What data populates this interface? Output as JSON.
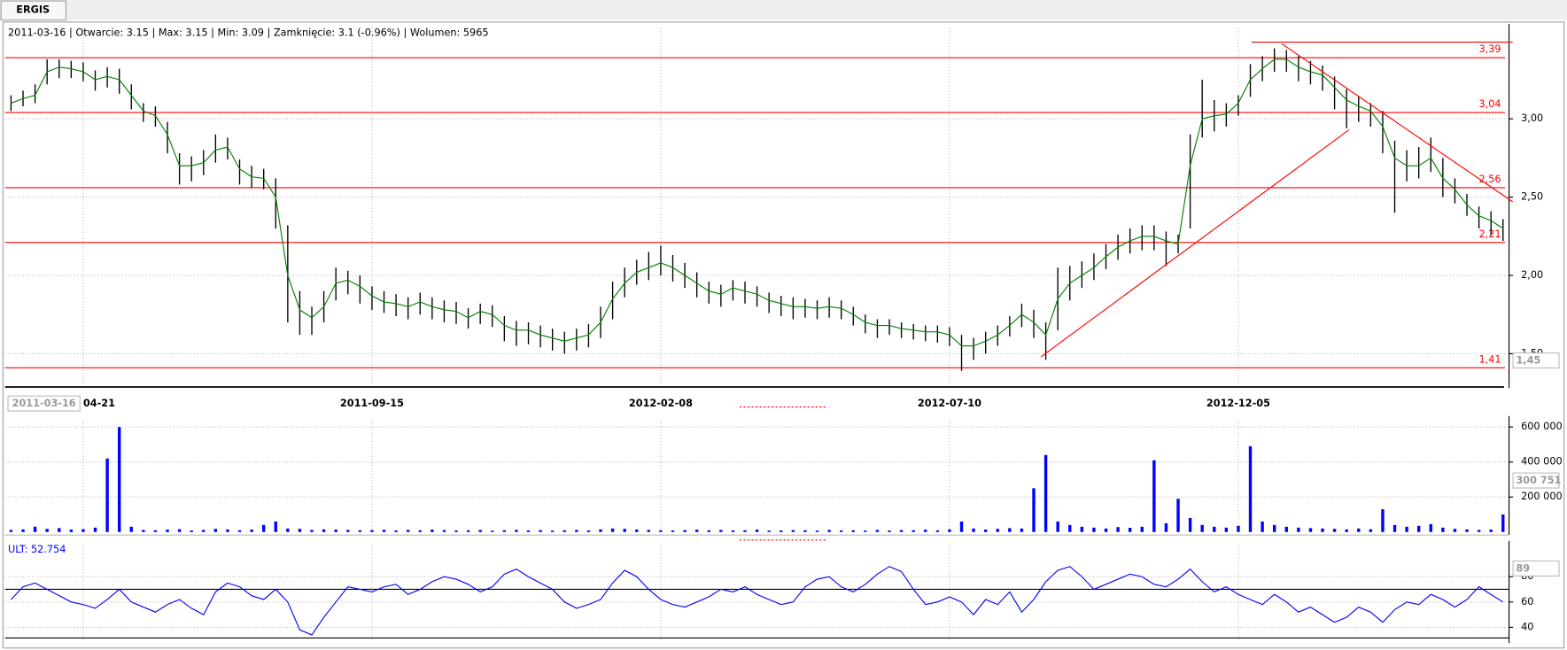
{
  "tab": "ERGIS",
  "chart_data": [
    {
      "type": "ohlc",
      "info": "2011-03-16 | Otwarcie: 3.15 | Max: 3.15 | Min: 3.09 | Zamknięcie: 3.1 (-0.96%)  | Wolumen: 5965",
      "cursor_date": "2011-03-16",
      "cursor_value": "1,45",
      "xlim": [
        -0.5,
        124.5
      ],
      "ylim": [
        1.3,
        3.58
      ],
      "yticks": [
        {
          "value": 3,
          "label": "3,00"
        },
        {
          "value": 2.5,
          "label": "2,50"
        },
        {
          "value": 2,
          "label": "2,00"
        },
        {
          "value": 1.5,
          "label": "1,50"
        }
      ],
      "xticks": [
        {
          "value": 6,
          "label": "04-21"
        },
        {
          "value": 30,
          "label": "2011-09-15"
        },
        {
          "value": 54,
          "label": "2012-02-08"
        },
        {
          "value": 78,
          "label": "2012-07-10"
        },
        {
          "value": 102,
          "label": "2012-12-05"
        }
      ],
      "bar_color": "#000000",
      "high": [
        3.15,
        3.18,
        3.22,
        3.38,
        3.38,
        3.37,
        3.36,
        3.31,
        3.33,
        3.32,
        3.22,
        3.1,
        3.08,
        2.98,
        2.78,
        2.76,
        2.8,
        2.9,
        2.88,
        2.74,
        2.7,
        2.68,
        2.62,
        2.32,
        1.9,
        1.8,
        1.9,
        2.05,
        2.03,
        2.0,
        1.93,
        1.9,
        1.88,
        1.86,
        1.89,
        1.86,
        1.84,
        1.83,
        1.79,
        1.82,
        1.81,
        1.74,
        1.71,
        1.7,
        1.68,
        1.66,
        1.64,
        1.66,
        1.69,
        1.8,
        1.96,
        2.05,
        2.1,
        2.15,
        2.19,
        2.13,
        2.08,
        2.02,
        1.96,
        1.94,
        1.97,
        1.96,
        1.93,
        1.89,
        1.87,
        1.86,
        1.85,
        1.84,
        1.86,
        1.84,
        1.8,
        1.75,
        1.72,
        1.72,
        1.7,
        1.69,
        1.68,
        1.68,
        1.67,
        1.62,
        1.6,
        1.64,
        1.68,
        1.74,
        1.82,
        1.78,
        1.7,
        2.05,
        2.06,
        2.09,
        2.14,
        2.2,
        2.26,
        2.3,
        2.32,
        2.32,
        2.28,
        2.26,
        2.9,
        3.25,
        3.12,
        3.1,
        3.15,
        3.35,
        3.4,
        3.45,
        3.44,
        3.4,
        3.37,
        3.34,
        3.27,
        3.19,
        3.14,
        3.1,
        3.05,
        2.86,
        2.8,
        2.82,
        2.88,
        2.75,
        2.62,
        2.52,
        2.44,
        2.41,
        2.36
      ],
      "low": [
        3.05,
        3.08,
        3.1,
        3.22,
        3.26,
        3.26,
        3.24,
        3.18,
        3.2,
        3.16,
        3.06,
        2.98,
        2.95,
        2.78,
        2.58,
        2.6,
        2.64,
        2.72,
        2.74,
        2.58,
        2.56,
        2.55,
        2.3,
        1.7,
        1.62,
        1.62,
        1.7,
        1.84,
        1.88,
        1.82,
        1.78,
        1.76,
        1.74,
        1.72,
        1.75,
        1.72,
        1.7,
        1.69,
        1.66,
        1.69,
        1.67,
        1.58,
        1.55,
        1.56,
        1.54,
        1.52,
        1.5,
        1.52,
        1.54,
        1.6,
        1.72,
        1.86,
        1.94,
        1.97,
        2.0,
        1.96,
        1.92,
        1.86,
        1.82,
        1.8,
        1.84,
        1.82,
        1.8,
        1.76,
        1.74,
        1.72,
        1.73,
        1.72,
        1.73,
        1.72,
        1.68,
        1.63,
        1.6,
        1.62,
        1.6,
        1.59,
        1.58,
        1.57,
        1.55,
        1.39,
        1.46,
        1.5,
        1.55,
        1.61,
        1.67,
        1.6,
        1.46,
        1.65,
        1.84,
        1.92,
        1.97,
        2.04,
        2.1,
        2.14,
        2.16,
        2.16,
        2.06,
        2.14,
        2.3,
        2.88,
        2.92,
        2.95,
        3.02,
        3.14,
        3.24,
        3.3,
        3.3,
        3.24,
        3.22,
        3.18,
        3.06,
        2.94,
        2.98,
        2.95,
        2.78,
        2.4,
        2.6,
        2.62,
        2.66,
        2.5,
        2.46,
        2.38,
        2.3,
        2.26,
        2.22
      ],
      "ma_color": "#008000",
      "ma_values": [
        3.1,
        3.13,
        3.15,
        3.3,
        3.33,
        3.32,
        3.3,
        3.25,
        3.27,
        3.25,
        3.15,
        3.05,
        3.02,
        2.9,
        2.7,
        2.7,
        2.72,
        2.8,
        2.82,
        2.68,
        2.63,
        2.62,
        2.5,
        2.0,
        1.78,
        1.73,
        1.8,
        1.95,
        1.97,
        1.93,
        1.87,
        1.83,
        1.82,
        1.8,
        1.83,
        1.8,
        1.78,
        1.77,
        1.73,
        1.77,
        1.75,
        1.68,
        1.65,
        1.65,
        1.62,
        1.6,
        1.58,
        1.6,
        1.62,
        1.7,
        1.85,
        1.95,
        2.02,
        2.05,
        2.08,
        2.05,
        2.0,
        1.95,
        1.9,
        1.88,
        1.92,
        1.9,
        1.88,
        1.84,
        1.82,
        1.8,
        1.8,
        1.79,
        1.8,
        1.79,
        1.75,
        1.7,
        1.68,
        1.68,
        1.66,
        1.65,
        1.64,
        1.64,
        1.62,
        1.55,
        1.55,
        1.58,
        1.62,
        1.68,
        1.75,
        1.7,
        1.62,
        1.85,
        1.95,
        2.0,
        2.05,
        2.12,
        2.18,
        2.22,
        2.25,
        2.25,
        2.22,
        2.2,
        2.7,
        3.0,
        3.02,
        3.03,
        3.1,
        3.25,
        3.32,
        3.38,
        3.38,
        3.33,
        3.3,
        3.28,
        3.2,
        3.12,
        3.08,
        3.05,
        2.95,
        2.75,
        2.7,
        2.7,
        2.75,
        2.62,
        2.55,
        2.45,
        2.38,
        2.35,
        2.3
      ],
      "level_color": "#ff0000",
      "levels": [
        {
          "value": 3.39,
          "label": "3,39"
        },
        {
          "value": 3.04,
          "label": "3,04"
        },
        {
          "value": 2.56,
          "label": "2,56"
        },
        {
          "value": 2.21,
          "label": "2,21"
        },
        {
          "value": 1.41,
          "label": "1,41"
        }
      ],
      "trend_lines": [
        {
          "x": [
            85.6,
            111.2
          ],
          "y": [
            1.48,
            2.93
          ]
        },
        {
          "x": [
            105.6,
            124.8
          ],
          "y": [
            3.48,
            2.47
          ]
        },
        {
          "x": [
            103.1,
            124.8
          ],
          "y": [
            3.49,
            3.49
          ]
        }
      ]
    },
    {
      "type": "bar",
      "cursor_value": "300 751",
      "color": "#0000ff",
      "xlim": [
        -0.5,
        124.5
      ],
      "ylim": [
        0,
        640000
      ],
      "yticks": [
        {
          "value": 600000,
          "label": "600 000"
        },
        {
          "value": 400000,
          "label": "400 000"
        },
        {
          "value": 200000,
          "label": "200 000"
        }
      ],
      "values": [
        12000,
        15000,
        30000,
        18000,
        22000,
        14000,
        16000,
        25000,
        420000,
        600000,
        30000,
        12000,
        10000,
        14000,
        16000,
        9000,
        12000,
        18000,
        15000,
        10000,
        14000,
        40000,
        60000,
        20000,
        18000,
        12000,
        15000,
        14000,
        12000,
        10000,
        11000,
        13000,
        9000,
        12000,
        10000,
        14000,
        11000,
        9000,
        10000,
        12000,
        8000,
        10000,
        12000,
        9000,
        11000,
        8000,
        10000,
        12000,
        9000,
        15000,
        20000,
        18000,
        14000,
        12000,
        10000,
        9000,
        11000,
        13000,
        10000,
        12000,
        9000,
        10000,
        14000,
        8000,
        9000,
        11000,
        10000,
        8000,
        12000,
        9000,
        10000,
        8000,
        12000,
        9000,
        11000,
        10000,
        13000,
        9000,
        15000,
        60000,
        20000,
        14000,
        18000,
        22000,
        20000,
        250000,
        440000,
        60000,
        40000,
        30000,
        25000,
        20000,
        28000,
        24000,
        30000,
        410000,
        50000,
        190000,
        80000,
        40000,
        30000,
        25000,
        35000,
        490000,
        60000,
        40000,
        30000,
        25000,
        22000,
        20000,
        18000,
        15000,
        20000,
        16000,
        130000,
        40000,
        30000,
        35000,
        45000,
        25000,
        18000,
        15000,
        12000,
        14000,
        100000
      ]
    },
    {
      "type": "line",
      "label": "ULT: 52.754",
      "cursor_value": "89",
      "color": "#0000ff",
      "xlim": [
        -0.5,
        124.5
      ],
      "ylim": [
        30,
        105
      ],
      "yticks": [
        80,
        60,
        40
      ],
      "ref_lines": [
        70
      ],
      "values": [
        62,
        72,
        75,
        70,
        65,
        60,
        58,
        55,
        62,
        70,
        60,
        56,
        52,
        58,
        62,
        55,
        50,
        68,
        75,
        72,
        65,
        62,
        70,
        60,
        38,
        34,
        48,
        60,
        72,
        70,
        68,
        72,
        74,
        66,
        70,
        76,
        80,
        78,
        74,
        68,
        72,
        82,
        86,
        80,
        75,
        70,
        60,
        55,
        58,
        62,
        75,
        85,
        80,
        70,
        62,
        58,
        56,
        60,
        64,
        70,
        68,
        72,
        66,
        62,
        58,
        60,
        72,
        78,
        80,
        72,
        68,
        74,
        82,
        88,
        84,
        70,
        58,
        60,
        64,
        60,
        50,
        62,
        58,
        68,
        52,
        62,
        76,
        85,
        88,
        80,
        70,
        74,
        78,
        82,
        80,
        74,
        72,
        78,
        86,
        76,
        68,
        72,
        66,
        62,
        58,
        66,
        60,
        52,
        56,
        50,
        44,
        48,
        56,
        52,
        44,
        54,
        60,
        58,
        66,
        62,
        56,
        62,
        72,
        66,
        60
      ]
    }
  ]
}
